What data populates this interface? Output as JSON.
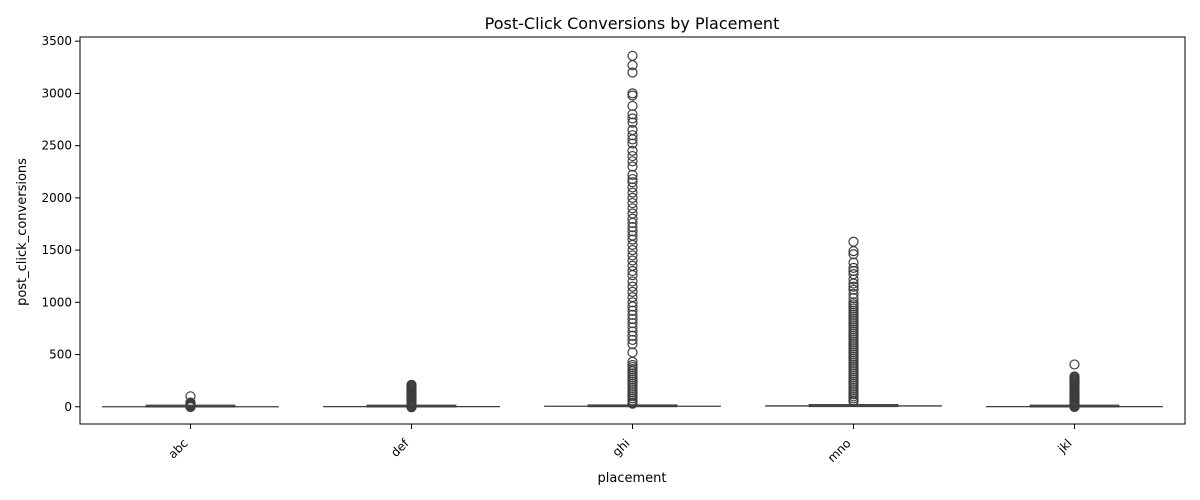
{
  "chart_data": {
    "type": "box",
    "title": "Post-Click Conversions by Placement",
    "xlabel": "placement",
    "ylabel": "post_click_conversions",
    "ylim": [
      -165,
      3540
    ],
    "yticks": [
      0,
      500,
      1000,
      1500,
      2000,
      2500,
      3000,
      3500
    ],
    "ytick_labels": [
      "0",
      "500",
      "1000",
      "1500",
      "2000",
      "2500",
      "3000",
      "3500"
    ],
    "categories": [
      "abc",
      "def",
      "ghi",
      "mno",
      "jkl"
    ],
    "boxes": [
      {
        "category": "abc",
        "min": 0,
        "q1": 0,
        "median": 0,
        "q3": 2,
        "max": 5,
        "outliers": [
          100,
          40,
          34,
          28,
          22,
          17,
          12,
          8,
          6,
          2,
          0,
          -2
        ]
      },
      {
        "category": "def",
        "min": 0,
        "q1": 0,
        "median": 1,
        "q3": 3,
        "max": 6,
        "outliers": [
          210,
          200,
          190,
          180,
          170,
          160,
          150,
          140,
          130,
          120,
          110,
          100,
          90,
          80,
          70,
          60,
          50,
          40,
          30,
          20,
          10,
          5,
          0,
          -5
        ]
      },
      {
        "category": "ghi",
        "min": 0,
        "q1": 2,
        "median": 5,
        "q3": 12,
        "max": 25,
        "outliers": [
          3360,
          3270,
          3200,
          3000,
          2980,
          2880,
          2800,
          2760,
          2720,
          2650,
          2600,
          2560,
          2520,
          2450,
          2400,
          2350,
          2300,
          2220,
          2180,
          2150,
          2100,
          2050,
          2000,
          1950,
          1900,
          1850,
          1800,
          1760,
          1720,
          1680,
          1640,
          1600,
          1550,
          1500,
          1450,
          1400,
          1350,
          1300,
          1260,
          1200,
          1150,
          1100,
          1050,
          1000,
          960,
          920,
          880,
          840,
          800,
          760,
          720,
          680,
          640,
          600,
          520,
          430,
          400,
          380,
          360,
          340,
          320,
          300,
          280,
          260,
          240,
          220,
          200,
          180,
          160,
          140,
          120,
          100,
          80,
          60,
          40,
          30
        ]
      },
      {
        "category": "mno",
        "min": 0,
        "q1": 3,
        "median": 8,
        "q3": 20,
        "max": 40,
        "outliers": [
          1580,
          1490,
          1460,
          1380,
          1330,
          1300,
          1270,
          1220,
          1180,
          1150,
          1120,
          1080,
          1040,
          1000,
          980,
          960,
          940,
          920,
          900,
          880,
          860,
          840,
          820,
          800,
          780,
          760,
          740,
          720,
          700,
          680,
          660,
          640,
          620,
          600,
          580,
          560,
          540,
          520,
          500,
          480,
          460,
          440,
          420,
          400,
          380,
          360,
          340,
          320,
          300,
          280,
          260,
          240,
          220,
          200,
          180,
          160,
          140,
          120,
          100,
          80,
          60,
          50
        ]
      },
      {
        "category": "jkl",
        "min": 0,
        "q1": 0,
        "median": 1,
        "q3": 3,
        "max": 6,
        "outliers": [
          405,
          290,
          280,
          270,
          260,
          250,
          240,
          230,
          220,
          210,
          200,
          190,
          180,
          170,
          160,
          150,
          140,
          130,
          120,
          110,
          100,
          90,
          80,
          70,
          60,
          50,
          40,
          30,
          20,
          10,
          5,
          0,
          -3
        ]
      }
    ],
    "colors": {
      "box_stroke": "#3d3d3d",
      "axis": "#000000"
    }
  }
}
